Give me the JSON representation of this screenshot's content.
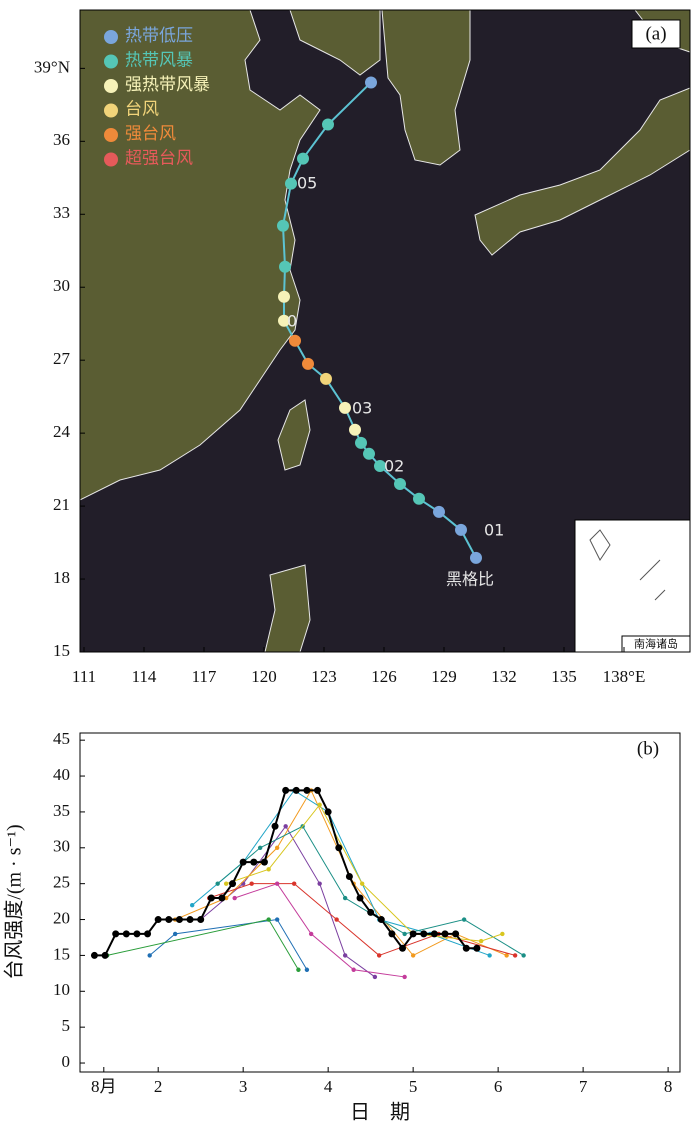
{
  "chart_data": [
    {
      "type": "track",
      "panel_label": "(a)",
      "inset_label": "南海诸岛",
      "xlim": [
        110.8,
        141.3
      ],
      "ylim": [
        15,
        41.4
      ],
      "xticks": [
        111,
        114,
        117,
        120,
        123,
        126,
        129,
        132,
        135,
        {
          "value": 138,
          "label": "138°E"
        }
      ],
      "yticks": [
        15,
        18,
        21,
        24,
        27,
        30,
        33,
        36,
        {
          "value": 39,
          "label": "39°N"
        }
      ],
      "legend": [
        {
          "name": "热带低压",
          "color": "#7aa6dc"
        },
        {
          "name": "热带风暴",
          "color": "#55c6b6"
        },
        {
          "name": "强热带风暴",
          "color": "#f6f2b8"
        },
        {
          "name": "台风",
          "color": "#f1d47a"
        },
        {
          "name": "强台风",
          "color": "#ef8a3a"
        },
        {
          "name": "超强台风",
          "color": "#e65a5a"
        }
      ],
      "line_color": "#5cc3d3",
      "x": [
        125.35,
        123.2,
        121.95,
        121.35,
        120.95,
        121.05,
        121.0,
        121.0,
        121.55,
        122.2,
        123.1,
        124.05,
        124.55,
        124.85,
        125.25,
        125.8,
        126.8,
        127.75,
        128.75,
        129.85,
        130.6
      ],
      "values": [
        38.42,
        36.69,
        35.29,
        34.26,
        32.53,
        30.84,
        29.61,
        28.62,
        27.8,
        26.85,
        26.23,
        25.04,
        24.14,
        23.6,
        23.15,
        22.65,
        21.91,
        21.3,
        20.76,
        20.02,
        18.87
      ],
      "colors": [
        "#7aa6dc",
        "#55c6b6",
        "#55c6b6",
        "#55c6b6",
        "#55c6b6",
        "#55c6b6",
        "#f6f2b8",
        "#f6f2b8",
        "#ef8a3a",
        "#ef8a3a",
        "#f1d47a",
        "#f6f2b8",
        "#f6f2b8",
        "#55c6b6",
        "#55c6b6",
        "#55c6b6",
        "#55c6b6",
        "#55c6b6",
        "#7aa6dc",
        "#7aa6dc",
        "#7aa6dc"
      ],
      "annotations": [
        "05",
        "0",
        "03",
        "02",
        "01",
        "黑格比"
      ]
    },
    {
      "type": "line",
      "panel_label": "(b)",
      "x_label": "日　期",
      "y_label": "台风强度/(m · s⁻¹)",
      "xlim": [
        1.08,
        8.14
      ],
      "ylim": [
        -1.25,
        46
      ],
      "xticks": [
        {
          "value": 1.36,
          "label": "8月"
        },
        2,
        3,
        4,
        5,
        6,
        7,
        8
      ],
      "yticks": [
        0,
        5,
        10,
        15,
        20,
        25,
        30,
        35,
        40,
        45
      ],
      "series": [
        {
          "color": "#1f6fb4",
          "x": [
            1.9,
            2.2,
            3.4,
            3.75
          ],
          "values": [
            15,
            18,
            20,
            13
          ]
        },
        {
          "color": "#2a9d3a",
          "x": [
            1.4,
            3.3,
            3.65
          ],
          "values": [
            15,
            20,
            13
          ]
        },
        {
          "color": "#7b3fa0",
          "x": [
            2.5,
            3.0,
            3.5,
            3.9,
            4.2,
            4.55
          ],
          "values": [
            20,
            25,
            33,
            25,
            15,
            12
          ]
        },
        {
          "color": "#f29a1e",
          "x": [
            2.2,
            2.8,
            3.4,
            3.8,
            4.3,
            5.0,
            5.5,
            6.1
          ],
          "values": [
            20,
            23,
            30,
            38,
            25,
            15,
            18,
            15
          ]
        },
        {
          "color": "#21a5c8",
          "x": [
            2.4,
            3.0,
            3.6,
            4.0,
            4.6,
            5.2,
            5.9
          ],
          "values": [
            22,
            28,
            38,
            35,
            20,
            18,
            15
          ]
        },
        {
          "color": "#d9342b",
          "x": [
            2.6,
            3.1,
            3.6,
            4.1,
            4.6,
            5.3,
            6.2
          ],
          "values": [
            23,
            25,
            25,
            20,
            15,
            18,
            15
          ]
        },
        {
          "color": "#1b8f86",
          "x": [
            2.7,
            3.2,
            3.7,
            4.2,
            4.9,
            5.6,
            6.3
          ],
          "values": [
            25,
            30,
            33,
            23,
            18,
            20,
            15
          ]
        },
        {
          "color": "#d8c61f",
          "x": [
            2.8,
            3.3,
            3.9,
            4.4,
            5.0,
            5.8,
            6.05
          ],
          "values": [
            25,
            27,
            36,
            25,
            18,
            17,
            18
          ]
        },
        {
          "color": "#c43c9b",
          "x": [
            2.9,
            3.4,
            3.8,
            4.3,
            4.9
          ],
          "values": [
            23,
            25,
            18,
            13,
            12
          ]
        },
        {
          "color": "#000000",
          "x": [
            1.25,
            1.375,
            1.5,
            1.625,
            1.75,
            1.875,
            2.0,
            2.125,
            2.25,
            2.375,
            2.5,
            2.625,
            2.75,
            2.875,
            3.0,
            3.125,
            3.25,
            3.375,
            3.5,
            3.625,
            3.75,
            3.875,
            4.0,
            4.125,
            4.25,
            4.375,
            4.5,
            4.625,
            4.75,
            4.875,
            5.0,
            5.125,
            5.25,
            5.375,
            5.5,
            5.625,
            5.75
          ],
          "values": [
            15,
            15,
            18,
            18,
            18,
            18,
            20,
            20,
            20,
            20,
            20,
            23,
            23,
            25,
            28,
            28,
            28,
            33,
            38,
            38,
            38,
            38,
            35,
            30,
            26,
            23,
            21,
            20,
            18,
            16,
            18,
            18,
            18,
            18,
            18,
            16,
            16
          ]
        }
      ]
    }
  ]
}
